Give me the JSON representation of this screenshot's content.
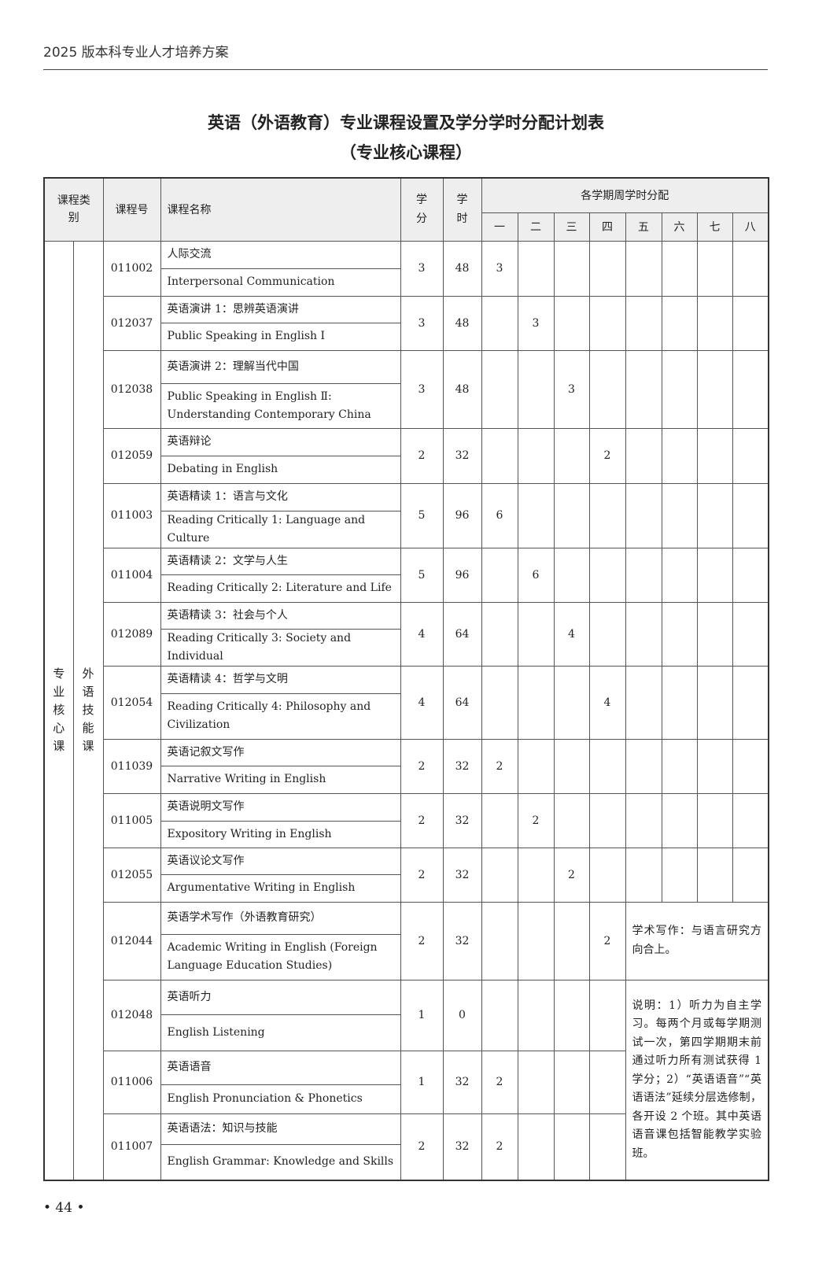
{
  "header": "2025 版本科专业人才培养方案",
  "title": "英语（外语教育）专业课程设置及学分学时分配计划表",
  "subtitle": "（专业核心课程）",
  "columns": {
    "category": "课程类别",
    "code": "课程号",
    "name": "课程名称",
    "credit": "学分",
    "hours": "学时",
    "semesters_group": "各学期周学时分配",
    "semesters": [
      "一",
      "二",
      "三",
      "四",
      "五",
      "六",
      "七",
      "八"
    ]
  },
  "category": "专业核心课",
  "subcategory": "外语技能课",
  "courses": [
    {
      "code": "011002",
      "cn": "人际交流",
      "en": "Interpersonal Communication",
      "credit": "3",
      "hours": "48",
      "sem": 1,
      "val": "3"
    },
    {
      "code": "012037",
      "cn": "英语演讲 1：思辨英语演讲",
      "en": "Public Speaking in English Ⅰ",
      "credit": "3",
      "hours": "48",
      "sem": 2,
      "val": "3"
    },
    {
      "code": "012038",
      "cn": "英语演讲 2：理解当代中国",
      "en": "Public Speaking in English Ⅱ: Understanding Contemporary China",
      "credit": "3",
      "hours": "48",
      "sem": 3,
      "val": "3"
    },
    {
      "code": "012059",
      "cn": "英语辩论",
      "en": "Debating in English",
      "credit": "2",
      "hours": "32",
      "sem": 4,
      "val": "2"
    },
    {
      "code": "011003",
      "cn": "英语精读 1：语言与文化",
      "en": "Reading Critically 1: Language and Culture",
      "credit": "5",
      "hours": "96",
      "sem": 1,
      "val": "6"
    },
    {
      "code": "011004",
      "cn": "英语精读 2：文学与人生",
      "en": "Reading Critically 2: Literature and Life",
      "credit": "5",
      "hours": "96",
      "sem": 2,
      "val": "6"
    },
    {
      "code": "012089",
      "cn": "英语精读 3：社会与个人",
      "en": "Reading Critically 3: Society and Individual",
      "credit": "4",
      "hours": "64",
      "sem": 3,
      "val": "4"
    },
    {
      "code": "012054",
      "cn": "英语精读 4：哲学与文明",
      "en": "Reading Critically 4: Philosophy and Civilization",
      "credit": "4",
      "hours": "64",
      "sem": 4,
      "val": "4"
    },
    {
      "code": "011039",
      "cn": "英语记叙文写作",
      "en": "Narrative Writing in English",
      "credit": "2",
      "hours": "32",
      "sem": 1,
      "val": "2"
    },
    {
      "code": "011005",
      "cn": "英语说明文写作",
      "en": "Expository Writing in English",
      "credit": "2",
      "hours": "32",
      "sem": 2,
      "val": "2"
    },
    {
      "code": "012055",
      "cn": "英语议论文写作",
      "en": "Argumentative Writing in English",
      "credit": "2",
      "hours": "32",
      "sem": 3,
      "val": "2"
    },
    {
      "code": "012044",
      "cn": "英语学术写作（外语教育研究）",
      "en": "Academic Writing in English (Foreign Language Education Studies)",
      "credit": "2",
      "hours": "32",
      "sem": 4,
      "val": "2"
    },
    {
      "code": "012048",
      "cn": "英语听力",
      "en": "English Listening",
      "credit": "1",
      "hours": "0",
      "sem": 0,
      "val": ""
    },
    {
      "code": "011006",
      "cn": "英语语音",
      "en": "English Pronunciation & Phonetics",
      "credit": "1",
      "hours": "32",
      "sem": 1,
      "val": "2"
    },
    {
      "code": "011007",
      "cn": "英语语法：知识与技能",
      "en": "English Grammar: Knowledge and Skills",
      "credit": "2",
      "hours": "32",
      "sem": 1,
      "val": "2"
    }
  ],
  "notes": {
    "academic": "学术写作：与语言研究方向合上。",
    "listening": "说明：1）听力为自主学习。每两个月或每学期测试一次，第四学期期末前通过听力所有测试获得 1 学分；2）“英语语音”“英语语法”延续分层选修制，各开设 2 个班。其中英语语音课包括智能教学实验班。"
  },
  "page_number": "• 44 •"
}
